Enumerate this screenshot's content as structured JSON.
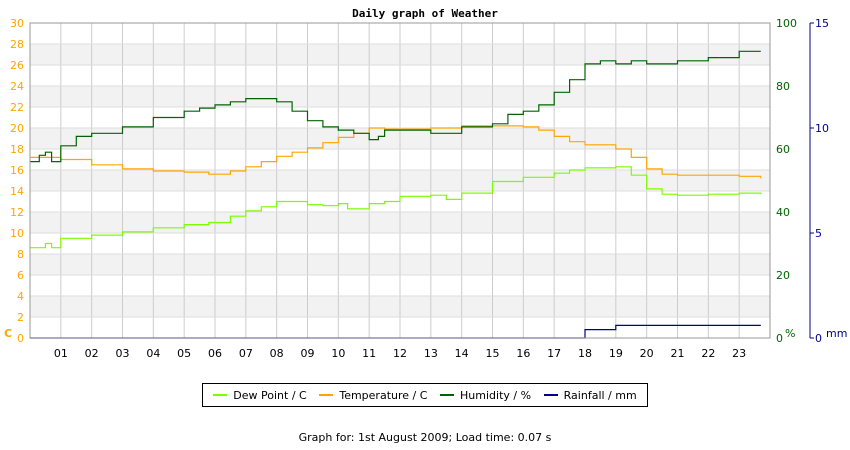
{
  "chart_data": {
    "type": "line",
    "title": "Daily graph of Weather",
    "x_unit": "hour",
    "xlim": [
      0,
      24
    ],
    "x_tick_labels": [
      "01",
      "02",
      "03",
      "04",
      "05",
      "06",
      "07",
      "08",
      "09",
      "10",
      "11",
      "12",
      "13",
      "14",
      "15",
      "16",
      "17",
      "18",
      "19",
      "20",
      "21",
      "22",
      "23"
    ],
    "axes": {
      "left": {
        "label": "C",
        "ylim": [
          0,
          30
        ],
        "ticks": [
          0,
          2,
          4,
          6,
          8,
          10,
          12,
          14,
          16,
          18,
          20,
          22,
          24,
          26,
          28,
          30
        ],
        "color": "#ffa500"
      },
      "right_humidity": {
        "label": "%",
        "ylim": [
          0,
          100
        ],
        "ticks": [
          0,
          20,
          40,
          60,
          80,
          100
        ],
        "color": "#006400"
      },
      "right_rainfall": {
        "label": "mm",
        "ylim": [
          0,
          15
        ],
        "ticks": [
          0,
          5,
          10,
          15
        ],
        "color": "#00008b"
      }
    },
    "series": [
      {
        "name": "Dew Point / C",
        "axis": "left",
        "color": "#7cfc00",
        "x": [
          0,
          0.5,
          0.7,
          1,
          2,
          3,
          4,
          5,
          5.8,
          6.5,
          7,
          7.5,
          8,
          8.5,
          9,
          9.5,
          10,
          10.3,
          11,
          11.5,
          12,
          13,
          13.5,
          14,
          15,
          16,
          17,
          17.5,
          18,
          19,
          19.5,
          20,
          20.5,
          21,
          22,
          23,
          23.7
        ],
        "y": [
          8.6,
          9.0,
          8.6,
          9.5,
          9.8,
          10.1,
          10.5,
          10.8,
          11.0,
          11.6,
          12.1,
          12.5,
          13.0,
          13.0,
          12.7,
          12.6,
          12.8,
          12.3,
          12.8,
          13.0,
          13.5,
          13.6,
          13.2,
          13.8,
          14.9,
          15.3,
          15.7,
          16.0,
          16.2,
          16.3,
          15.5,
          14.2,
          13.7,
          13.6,
          13.7,
          13.8,
          13.7
        ]
      },
      {
        "name": "Temperature / C",
        "axis": "left",
        "color": "#ffa500",
        "x": [
          0,
          1,
          2,
          3,
          4,
          5,
          5.8,
          6.5,
          7,
          7.5,
          8,
          8.5,
          9,
          9.5,
          10,
          10.5,
          11,
          11.5,
          12,
          13,
          14,
          15,
          16,
          16.5,
          17,
          17.5,
          18,
          19,
          19.5,
          20,
          20.5,
          21,
          22,
          23,
          23.7
        ],
        "y": [
          17.2,
          17.0,
          16.5,
          16.1,
          15.9,
          15.8,
          15.6,
          15.9,
          16.3,
          16.8,
          17.3,
          17.7,
          18.1,
          18.6,
          19.1,
          19.5,
          20.0,
          19.9,
          19.9,
          20.0,
          20.2,
          20.2,
          20.1,
          19.8,
          19.2,
          18.7,
          18.4,
          18.0,
          17.2,
          16.1,
          15.6,
          15.5,
          15.5,
          15.4,
          15.2
        ]
      },
      {
        "name": "Humidity / %",
        "axis": "right_humidity",
        "color": "#006400",
        "x": [
          0,
          0.3,
          0.5,
          0.7,
          1,
          1.5,
          2,
          3,
          4,
          5,
          5.5,
          6,
          6.5,
          7,
          7.5,
          8,
          8.5,
          9,
          9.5,
          10,
          10.5,
          11,
          11.3,
          11.5,
          12,
          13,
          14,
          15,
          15.5,
          16,
          16.5,
          17,
          17.5,
          18,
          18.5,
          19,
          19.5,
          20,
          20.5,
          21,
          22,
          23,
          23.7
        ],
        "y": [
          56,
          58,
          59,
          56,
          61,
          64,
          65,
          67,
          70,
          72,
          73,
          74,
          75,
          76,
          76,
          75,
          72,
          69,
          67,
          66,
          65,
          63,
          64,
          66,
          66,
          65,
          67,
          68,
          71,
          72,
          74,
          78,
          82,
          87,
          88,
          87,
          88,
          87,
          87,
          88,
          89,
          91,
          91
        ]
      },
      {
        "name": "Rainfall / mm",
        "axis": "right_rainfall",
        "color": "#00008b",
        "x": [
          0,
          17.9,
          18.0,
          18.8,
          19.0,
          23.7
        ],
        "y": [
          0,
          0,
          0.4,
          0.4,
          0.6,
          0.6
        ]
      }
    ],
    "grid": true,
    "legend_placement": "bottom"
  },
  "footer": {
    "text": "Graph for: 1st August 2009; Load time: 0.07 s"
  }
}
